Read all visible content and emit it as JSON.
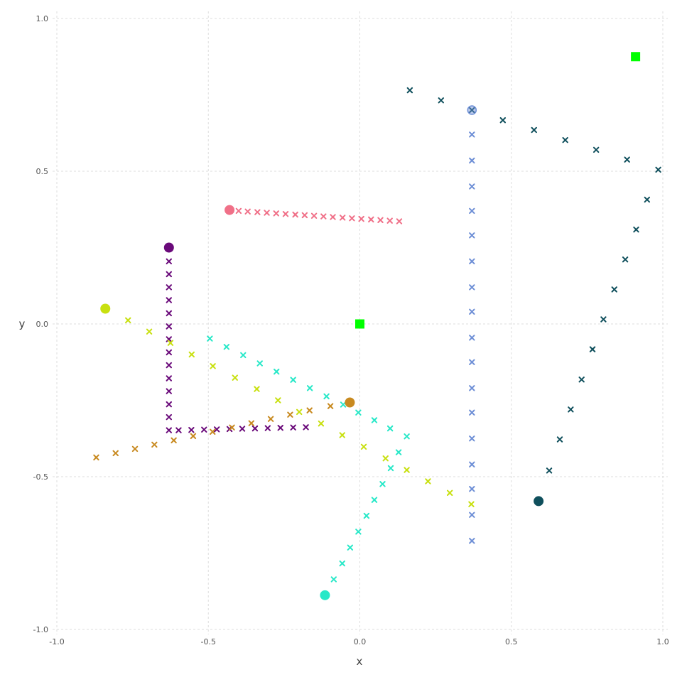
{
  "chart_data": {
    "type": "scatter",
    "title": "",
    "xlabel": "x",
    "ylabel": "y",
    "xlim": [
      -1.0,
      1.0
    ],
    "ylim": [
      -1.0,
      1.0
    ],
    "grid": true,
    "legend": "none",
    "x_ticks": [
      "-1.0",
      "-0.5",
      "0.0",
      "0.5",
      "1.0"
    ],
    "y_ticks": [
      "-1.0",
      "-0.5",
      "0.0",
      "0.5",
      "1.0"
    ],
    "squares": [
      {
        "x": 0.0,
        "y": 0.0,
        "color": "#00ff00"
      },
      {
        "x": 0.91,
        "y": 0.875,
        "color": "#00ff00"
      }
    ],
    "series": [
      {
        "color": "#6e8fd6",
        "start": {
          "x": 0.37,
          "y": 0.7,
          "style": "ring"
        },
        "points": [
          [
            0.37,
            0.7
          ],
          [
            0.37,
            0.62
          ],
          [
            0.37,
            0.535
          ],
          [
            0.37,
            0.45
          ],
          [
            0.37,
            0.37
          ],
          [
            0.37,
            0.29
          ],
          [
            0.37,
            0.205
          ],
          [
            0.37,
            0.12
          ],
          [
            0.37,
            0.04
          ],
          [
            0.37,
            -0.045
          ],
          [
            0.37,
            -0.125
          ],
          [
            0.37,
            -0.21
          ],
          [
            0.37,
            -0.29
          ],
          [
            0.37,
            -0.375
          ],
          [
            0.37,
            -0.46
          ],
          [
            0.37,
            -0.54
          ],
          [
            0.37,
            -0.625
          ],
          [
            0.37,
            -0.71
          ]
        ]
      },
      {
        "color": "#0f4f5c",
        "start": {
          "x": 0.59,
          "y": -0.58,
          "style": "dot"
        },
        "points": [
          [
            0.165,
            0.765
          ],
          [
            0.268,
            0.732
          ],
          [
            0.37,
            0.7
          ],
          [
            0.472,
            0.667
          ],
          [
            0.575,
            0.635
          ],
          [
            0.678,
            0.602
          ],
          [
            0.78,
            0.57
          ],
          [
            0.882,
            0.538
          ],
          [
            0.985,
            0.505
          ],
          [
            0.948,
            0.407
          ],
          [
            0.912,
            0.309
          ],
          [
            0.876,
            0.211
          ],
          [
            0.84,
            0.113
          ],
          [
            0.804,
            0.015
          ],
          [
            0.768,
            -0.083
          ],
          [
            0.732,
            -0.182
          ],
          [
            0.696,
            -0.28
          ],
          [
            0.66,
            -0.378
          ],
          [
            0.625,
            -0.48
          ]
        ]
      },
      {
        "color": "#f07088",
        "start": {
          "x": -0.43,
          "y": 0.373,
          "style": "dot"
        },
        "points": [
          [
            -0.4,
            0.37
          ],
          [
            -0.37,
            0.368
          ],
          [
            -0.338,
            0.366
          ],
          [
            -0.307,
            0.364
          ],
          [
            -0.276,
            0.362
          ],
          [
            -0.245,
            0.36
          ],
          [
            -0.213,
            0.358
          ],
          [
            -0.182,
            0.356
          ],
          [
            -0.151,
            0.354
          ],
          [
            -0.12,
            0.352
          ],
          [
            -0.089,
            0.35
          ],
          [
            -0.057,
            0.348
          ],
          [
            -0.026,
            0.346
          ],
          [
            0.005,
            0.344
          ],
          [
            0.037,
            0.342
          ],
          [
            0.068,
            0.34
          ],
          [
            0.099,
            0.338
          ],
          [
            0.13,
            0.336
          ]
        ]
      },
      {
        "color": "#6a0a7a",
        "start": {
          "x": -0.63,
          "y": 0.25,
          "style": "dot"
        },
        "points": [
          [
            -0.63,
            0.205
          ],
          [
            -0.63,
            0.163
          ],
          [
            -0.63,
            0.12
          ],
          [
            -0.63,
            0.078
          ],
          [
            -0.63,
            0.035
          ],
          [
            -0.63,
            -0.008
          ],
          [
            -0.63,
            -0.05
          ],
          [
            -0.63,
            -0.093
          ],
          [
            -0.63,
            -0.135
          ],
          [
            -0.63,
            -0.178
          ],
          [
            -0.63,
            -0.22
          ],
          [
            -0.63,
            -0.263
          ],
          [
            -0.63,
            -0.305
          ],
          [
            -0.63,
            -0.348
          ],
          [
            -0.598,
            -0.348
          ],
          [
            -0.556,
            -0.347
          ],
          [
            -0.514,
            -0.346
          ],
          [
            -0.472,
            -0.345
          ],
          [
            -0.43,
            -0.344
          ],
          [
            -0.388,
            -0.343
          ],
          [
            -0.346,
            -0.342
          ],
          [
            -0.304,
            -0.341
          ],
          [
            -0.262,
            -0.34
          ],
          [
            -0.22,
            -0.339
          ],
          [
            -0.178,
            -0.338
          ]
        ]
      },
      {
        "color": "#c8e010",
        "start": {
          "x": -0.84,
          "y": 0.05,
          "style": "dot"
        },
        "points": [
          [
            -0.765,
            0.012
          ],
          [
            -0.695,
            -0.025
          ],
          [
            -0.625,
            -0.062
          ],
          [
            -0.555,
            -0.1
          ],
          [
            -0.485,
            -0.138
          ],
          [
            -0.412,
            -0.176
          ],
          [
            -0.34,
            -0.213
          ],
          [
            -0.27,
            -0.25
          ],
          [
            -0.2,
            -0.288
          ],
          [
            -0.128,
            -0.326
          ],
          [
            -0.058,
            -0.364
          ],
          [
            0.013,
            -0.402
          ],
          [
            0.085,
            -0.44
          ],
          [
            0.155,
            -0.478
          ],
          [
            0.225,
            -0.515
          ],
          [
            0.297,
            -0.553
          ],
          [
            0.368,
            -0.59
          ]
        ]
      },
      {
        "color": "#c88a20",
        "start": {
          "x": -0.033,
          "y": -0.257,
          "style": "dot"
        },
        "points": [
          [
            -0.87,
            -0.437
          ],
          [
            -0.806,
            -0.423
          ],
          [
            -0.742,
            -0.409
          ],
          [
            -0.678,
            -0.395
          ],
          [
            -0.614,
            -0.381
          ],
          [
            -0.55,
            -0.367
          ],
          [
            -0.486,
            -0.353
          ],
          [
            -0.422,
            -0.339
          ],
          [
            -0.358,
            -0.325
          ],
          [
            -0.294,
            -0.311
          ],
          [
            -0.23,
            -0.297
          ],
          [
            -0.166,
            -0.283
          ],
          [
            -0.097,
            -0.269
          ]
        ]
      },
      {
        "color": "#28e8c8",
        "start": {
          "x": -0.115,
          "y": -0.888,
          "style": "dot"
        },
        "points": [
          [
            -0.495,
            -0.048
          ],
          [
            -0.44,
            -0.075
          ],
          [
            -0.385,
            -0.102
          ],
          [
            -0.33,
            -0.129
          ],
          [
            -0.275,
            -0.156
          ],
          [
            -0.22,
            -0.183
          ],
          [
            -0.165,
            -0.21
          ],
          [
            -0.11,
            -0.237
          ],
          [
            -0.055,
            -0.264
          ],
          [
            -0.005,
            -0.29
          ],
          [
            0.048,
            -0.315
          ],
          [
            0.1,
            -0.342
          ],
          [
            0.155,
            -0.368
          ],
          [
            0.128,
            -0.42
          ],
          [
            0.102,
            -0.472
          ],
          [
            0.075,
            -0.524
          ],
          [
            0.048,
            -0.576
          ],
          [
            0.022,
            -0.628
          ],
          [
            -0.005,
            -0.68
          ],
          [
            -0.032,
            -0.732
          ],
          [
            -0.058,
            -0.784
          ],
          [
            -0.086,
            -0.836
          ]
        ]
      }
    ]
  }
}
